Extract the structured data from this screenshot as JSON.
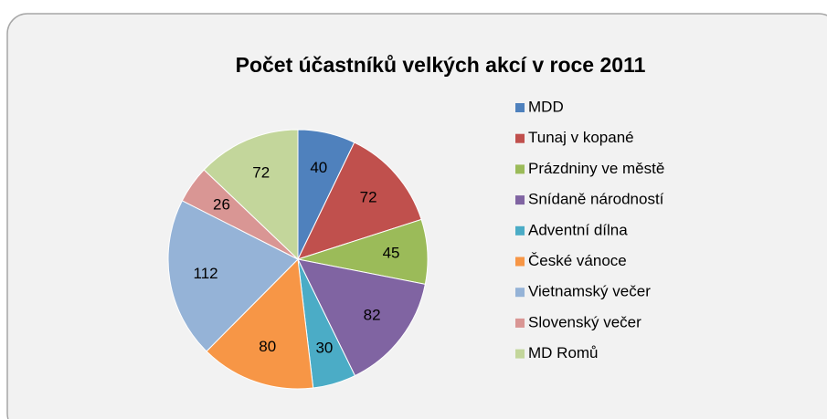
{
  "chart_data": {
    "type": "pie",
    "title": "Počet účastníků velkých akcí v roce 2011",
    "categories": [
      "MDD",
      "Tunaj v kopané",
      "Prázdniny ve městě",
      "Snídaně národností",
      "Adventní dílna",
      "České vánoce",
      "Vietnamský večer",
      "Slovenský večer",
      "MD Romů"
    ],
    "values": [
      40,
      72,
      45,
      82,
      30,
      80,
      112,
      26,
      72
    ],
    "colors": [
      "#4f81bd",
      "#c0504d",
      "#9bbb59",
      "#8064a2",
      "#4bacc6",
      "#f79646",
      "#95b3d7",
      "#d99694",
      "#c3d69b"
    ],
    "legend": "right"
  }
}
